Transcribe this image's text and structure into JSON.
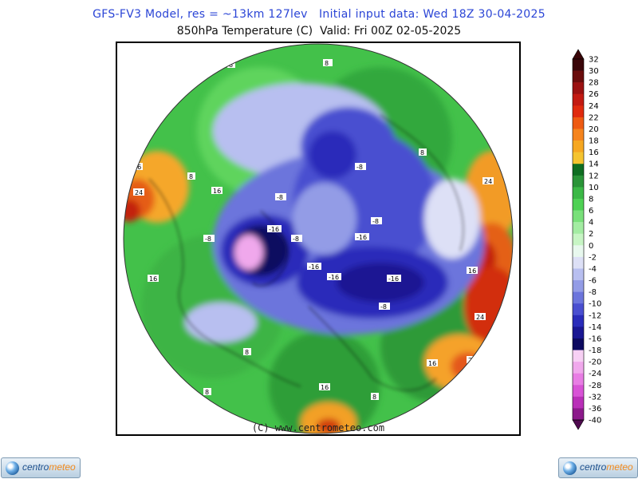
{
  "header": {
    "title_line1": "GFS-FV3 Model, res = ~13km 127lev   Initial input data: Wed 18Z 30-04-2025",
    "title_line2": "850hPa Temperature (C)  Valid: Fri 00Z 02-05-2025"
  },
  "map": {
    "credit": "(C) www.centrometeo.com",
    "labels": [
      "8",
      "8",
      "8",
      "8",
      "8",
      "8",
      "8",
      "16",
      "16",
      "16",
      "16",
      "16",
      "16",
      "24",
      "24",
      "24",
      "24",
      "-8",
      "-8",
      "-8",
      "-8",
      "-8",
      "-8",
      "-16",
      "-16",
      "-16",
      "-16",
      "-16"
    ]
  },
  "colorbar": {
    "ticks": [
      "32",
      "30",
      "28",
      "26",
      "24",
      "22",
      "20",
      "18",
      "16",
      "14",
      "12",
      "10",
      "8",
      "6",
      "4",
      "2",
      "0",
      "-2",
      "-4",
      "-6",
      "-8",
      "-10",
      "-12",
      "-14",
      "-16",
      "-18",
      "-20",
      "-24",
      "-28",
      "-32",
      "-36",
      "-40"
    ],
    "colors": [
      "#3a0508",
      "#6a0c0c",
      "#9b1111",
      "#c31a12",
      "#e02a0e",
      "#ee5a12",
      "#f5841d",
      "#f6a721",
      "#f5c430",
      "#0f6e22",
      "#2a9438",
      "#3bb846",
      "#4ed154",
      "#79e07a",
      "#a3eca2",
      "#c7f5c4",
      "#e8f8ee",
      "#dde0f6",
      "#b8bff0",
      "#939ce6",
      "#6c75dc",
      "#4a4fd0",
      "#2a2cba",
      "#1a1793",
      "#0d0a60",
      "#f7d0f4",
      "#f0a8ec",
      "#e87de4",
      "#d853d6",
      "#b92fb8",
      "#8c1a8b",
      "#4f0a4f"
    ]
  },
  "logos": {
    "left_text": "centro",
    "left_text2": "meteo",
    "right_text": "centro",
    "right_text2": "meteo"
  }
}
